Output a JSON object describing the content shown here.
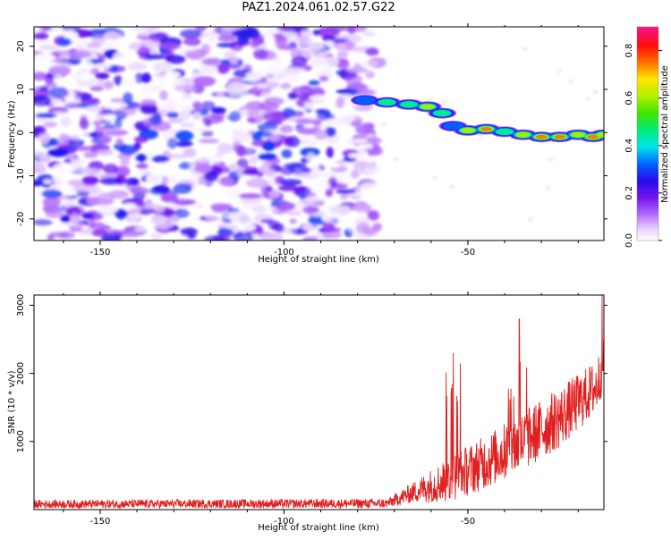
{
  "figure": {
    "title": "PAZ1.2024.061.02.57.G22"
  },
  "chart_data": [
    {
      "type": "heatmap",
      "xlabel": "Height of straight line (km)",
      "ylabel": "Frequency (Hz)",
      "xlim": [
        -168,
        -13
      ],
      "ylim": [
        -25,
        24.5
      ],
      "xticks": [
        -150,
        -100,
        -50
      ],
      "yticks": [
        -20,
        -10,
        0,
        10,
        20
      ],
      "colorbar": {
        "label": "Normalized spectral amplitude",
        "range": [
          0,
          0.9
        ],
        "ticks": [
          "0.0",
          "0.2",
          "0.4",
          "0.6",
          "0.8"
        ],
        "colormap": "gist_ncar_r"
      },
      "trace": [
        {
          "x": -78,
          "y": 7.5,
          "amp": 0.35
        },
        {
          "x": -72,
          "y": 7.0,
          "amp": 0.55
        },
        {
          "x": -66,
          "y": 6.5,
          "amp": 0.5
        },
        {
          "x": -61,
          "y": 6.0,
          "amp": 0.7
        },
        {
          "x": -57,
          "y": 4.5,
          "amp": 0.45
        },
        {
          "x": -54,
          "y": 1.5,
          "amp": 0.4
        },
        {
          "x": -50,
          "y": 0.5,
          "amp": 0.6
        },
        {
          "x": -45,
          "y": 0.8,
          "amp": 0.8
        },
        {
          "x": -40,
          "y": 0.2,
          "amp": 0.5
        },
        {
          "x": -35,
          "y": -0.5,
          "amp": 0.65
        },
        {
          "x": -30,
          "y": -1.0,
          "amp": 0.85
        },
        {
          "x": -25,
          "y": -1.0,
          "amp": 0.85
        },
        {
          "x": -20,
          "y": -0.5,
          "amp": 0.7
        },
        {
          "x": -16,
          "y": -1.0,
          "amp": 0.85
        },
        {
          "x": -13,
          "y": -0.5,
          "amp": 0.6
        }
      ]
    },
    {
      "type": "line",
      "xlabel": "Height of straight line (km)",
      "ylabel": "SNR (10 * v/v)",
      "xlim": [
        -168,
        -13
      ],
      "ylim": [
        0,
        3150
      ],
      "xticks": [
        -150,
        -100,
        -50
      ],
      "yticks": [
        1000,
        2000,
        3000
      ],
      "color": "#e02020",
      "envelope": [
        {
          "x": -168,
          "base": 80,
          "amp": 60
        },
        {
          "x": -72,
          "base": 90,
          "amp": 70
        },
        {
          "x": -65,
          "base": 250,
          "amp": 150
        },
        {
          "x": -55,
          "base": 450,
          "amp": 350
        },
        {
          "x": -45,
          "base": 700,
          "amp": 400
        },
        {
          "x": -35,
          "base": 1000,
          "amp": 450
        },
        {
          "x": -25,
          "base": 1350,
          "amp": 450
        },
        {
          "x": -15,
          "base": 1800,
          "amp": 400
        },
        {
          "x": -13,
          "base": 2200,
          "amp": 400
        }
      ],
      "spikes": [
        {
          "x": -54,
          "y": 2300
        },
        {
          "x": -53,
          "y": 2000
        },
        {
          "x": -36,
          "y": 2800
        },
        {
          "x": -13.5,
          "y": 3150
        }
      ]
    }
  ]
}
